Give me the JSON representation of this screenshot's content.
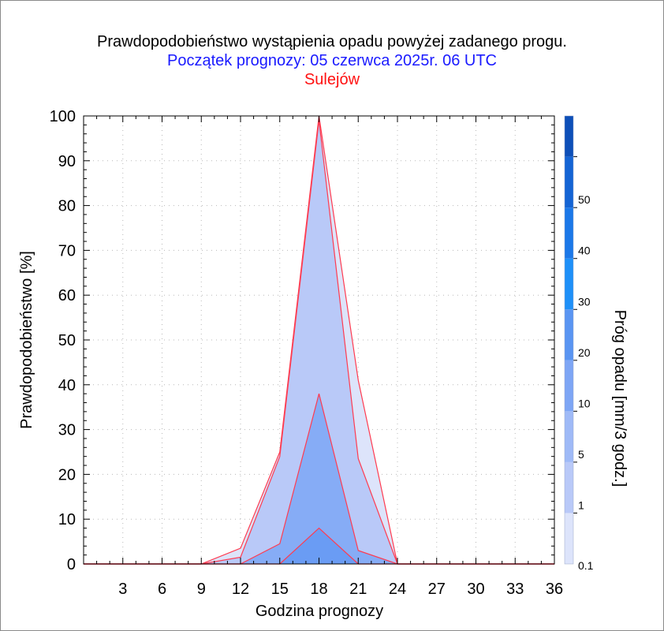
{
  "header": {
    "title": "Prawdopodobieństwo wystąpienia opadu powyżej zadanego progu.",
    "subtitle": "Początek prognozy: 05 czerwca 2025r. 06 UTC",
    "location": "Sulejów"
  },
  "chart_data": {
    "type": "area",
    "title": "Prawdopodobieństwo wystąpienia opadu powyżej zadanego progu.",
    "subtitle": "Początek prognozy: 05 czerwca 2025r. 06 UTC",
    "location": "Sulejów",
    "xlabel": "Godzina prognozy",
    "ylabel": "Prawdopodobieństwo [%]",
    "colorbar_label": "Próg opadu [mm/3 godz.]",
    "xlim": [
      0,
      36
    ],
    "ylim": [
      0,
      100
    ],
    "x_ticks": [
      3,
      6,
      9,
      12,
      15,
      18,
      21,
      24,
      27,
      30,
      33,
      36
    ],
    "y_ticks": [
      0,
      10,
      20,
      30,
      40,
      50,
      60,
      70,
      80,
      90,
      100
    ],
    "grid": true,
    "x": [
      0,
      3,
      6,
      9,
      12,
      15,
      18,
      21,
      24,
      27,
      30,
      33,
      36
    ],
    "series": [
      {
        "threshold": 0.1,
        "color": "#dde4fb",
        "values": [
          0,
          0,
          0,
          0,
          3.5,
          25,
          100,
          41,
          0,
          0,
          0,
          0,
          0
        ]
      },
      {
        "threshold": 1,
        "color": "#b9c9f8",
        "values": [
          0,
          0,
          0,
          0,
          1.5,
          24,
          99,
          23.5,
          0,
          0,
          0,
          0,
          0
        ]
      },
      {
        "threshold": 5,
        "color": "#86acf6",
        "values": [
          0,
          0,
          0,
          0,
          0,
          4.5,
          38,
          3,
          0,
          0,
          0,
          0,
          0
        ]
      },
      {
        "threshold": 10,
        "color": "#6a9cf4",
        "values": [
          0,
          0,
          0,
          0,
          0,
          0,
          8,
          0,
          0,
          0,
          0,
          0,
          0
        ]
      }
    ],
    "colorbar": {
      "labels": [
        "0.1",
        "1",
        "5",
        "10",
        "20",
        "30",
        "40",
        "50"
      ],
      "colors": [
        "#dde4fb",
        "#b9c9f8",
        "#9fbaf7",
        "#7ea6f5",
        "#5a95f2",
        "#1e90f8",
        "#1b78e8",
        "#1464d4",
        "#0d4fb8"
      ]
    },
    "outline_color": "#ff3b50"
  }
}
